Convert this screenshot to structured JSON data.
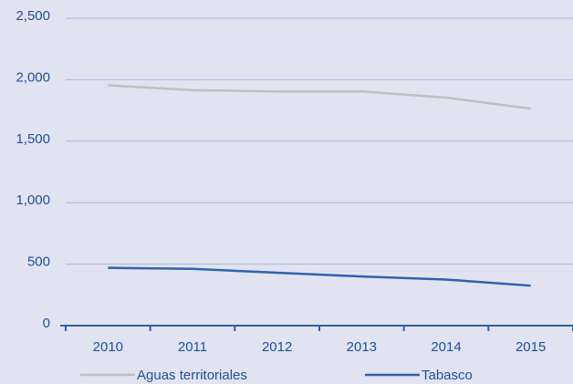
{
  "chart_data": {
    "type": "line",
    "categories": [
      "2010",
      "2011",
      "2012",
      "2013",
      "2014",
      "2015"
    ],
    "series": [
      {
        "name": "Aguas territoriales",
        "color": "#bfbfbf",
        "values": [
          1955,
          1915,
          1905,
          1905,
          1855,
          1765
        ]
      },
      {
        "name": "Tabasco",
        "color": "#2e62ad",
        "values": [
          470,
          462,
          430,
          400,
          375,
          325
        ]
      }
    ],
    "ylim": [
      0,
      2500
    ],
    "yticks": [
      {
        "value": 0,
        "label": "0"
      },
      {
        "value": 500,
        "label": "500"
      },
      {
        "value": 1000,
        "label": "1,000"
      },
      {
        "value": 1500,
        "label": "1,500"
      },
      {
        "value": 2000,
        "label": "2,000"
      },
      {
        "value": 2500,
        "label": "2,500"
      }
    ],
    "grid": true
  }
}
